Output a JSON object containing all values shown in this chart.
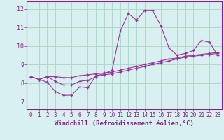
{
  "xlabel": "Windchill (Refroidissement éolien,°C)",
  "background_color": "#d8f0f0",
  "grid_color": "#b0d8d0",
  "line_color": "#993399",
  "xlim": [
    -0.5,
    23.5
  ],
  "ylim": [
    6.6,
    12.4
  ],
  "xticks": [
    0,
    1,
    2,
    3,
    4,
    5,
    6,
    7,
    8,
    9,
    10,
    11,
    12,
    13,
    14,
    15,
    16,
    17,
    18,
    19,
    20,
    21,
    22,
    23
  ],
  "yticks": [
    7,
    8,
    9,
    10,
    11,
    12
  ],
  "line1_x": [
    0,
    1,
    2,
    3,
    4,
    5,
    6,
    7,
    8,
    9,
    10,
    11,
    12,
    13,
    14,
    15,
    16,
    17,
    18,
    19,
    20,
    21,
    22,
    23
  ],
  "line1_y": [
    8.35,
    8.2,
    8.05,
    7.55,
    7.35,
    7.35,
    7.8,
    7.75,
    8.4,
    8.5,
    8.7,
    10.8,
    11.75,
    11.4,
    11.9,
    11.9,
    11.1,
    9.9,
    9.5,
    9.6,
    9.75,
    10.3,
    10.2,
    9.5
  ],
  "line2_x": [
    0,
    1,
    2,
    3,
    4,
    5,
    6,
    7,
    8,
    9,
    10,
    11,
    12,
    13,
    14,
    15,
    16,
    17,
    18,
    19,
    20,
    21,
    22,
    23
  ],
  "line2_y": [
    8.35,
    8.2,
    8.35,
    8.35,
    8.3,
    8.3,
    8.4,
    8.45,
    8.5,
    8.55,
    8.6,
    8.7,
    8.8,
    8.9,
    9.0,
    9.1,
    9.2,
    9.3,
    9.35,
    9.45,
    9.5,
    9.55,
    9.6,
    9.65
  ],
  "line3_x": [
    0,
    1,
    2,
    3,
    4,
    5,
    6,
    7,
    8,
    9,
    10,
    11,
    12,
    13,
    14,
    15,
    16,
    17,
    18,
    19,
    20,
    21,
    22,
    23
  ],
  "line3_y": [
    8.35,
    8.2,
    8.35,
    8.1,
    7.9,
    7.9,
    8.1,
    8.15,
    8.35,
    8.45,
    8.5,
    8.6,
    8.7,
    8.8,
    8.9,
    9.0,
    9.1,
    9.2,
    9.3,
    9.4,
    9.45,
    9.5,
    9.55,
    9.6
  ],
  "font_color": "#882288",
  "tick_fontsize": 5.5,
  "label_fontsize": 6.5
}
